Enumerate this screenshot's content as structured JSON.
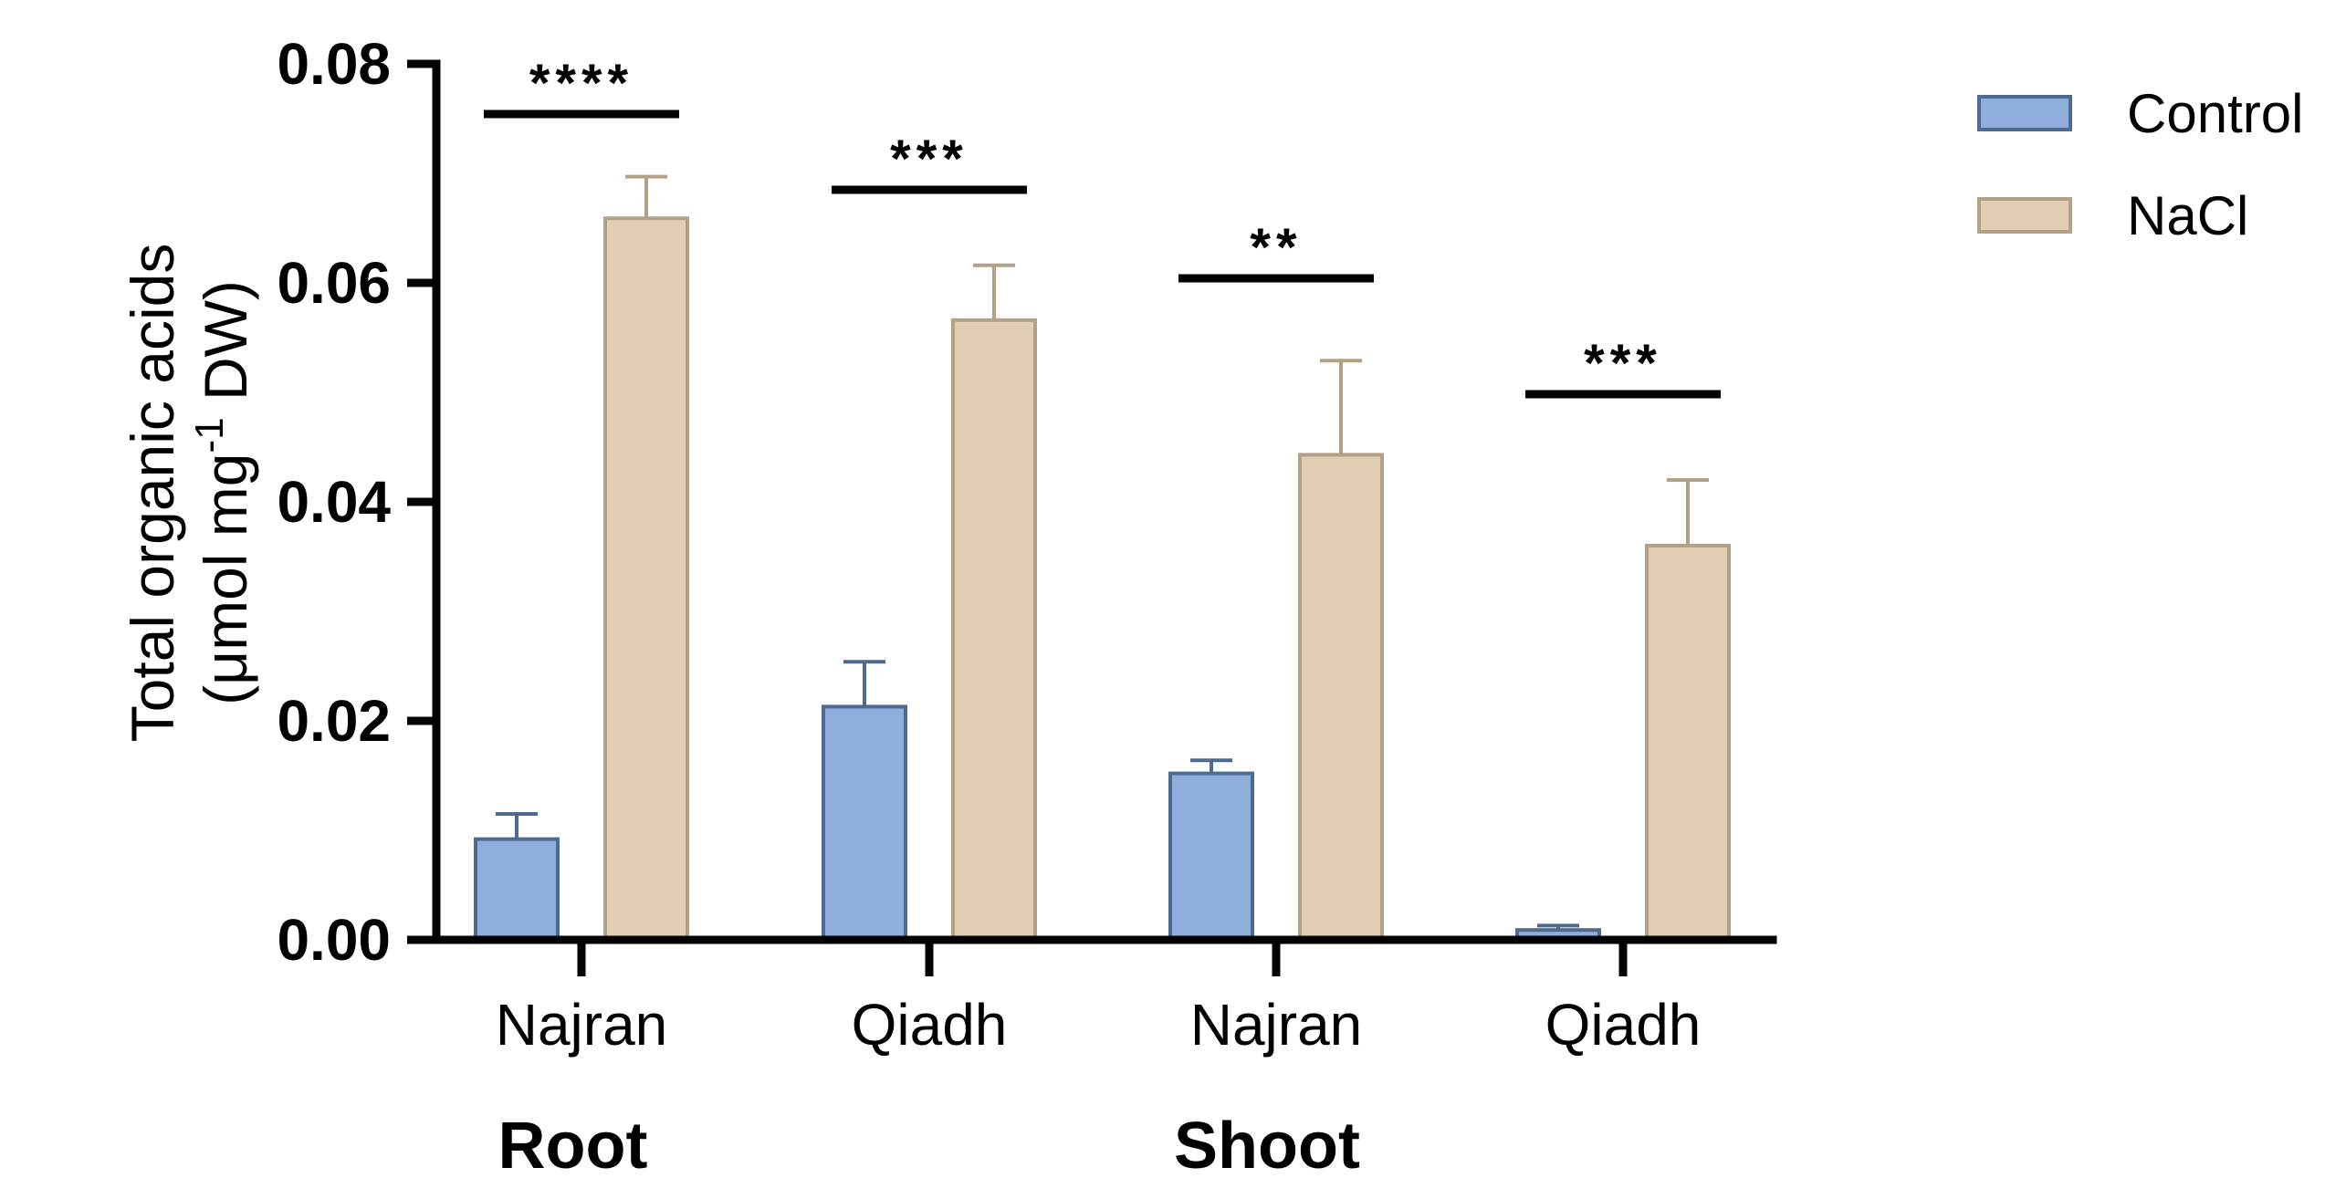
{
  "chart_data": {
    "type": "bar",
    "title": "",
    "ylabel_line1": "Total organic acids",
    "ylabel_line2_prefix": "(μmol mg",
    "ylabel_superscript": "-1",
    "ylabel_line2_suffix": " DW)",
    "ylim": [
      0,
      0.08
    ],
    "yticks": [
      0.0,
      0.02,
      0.04,
      0.06,
      0.08
    ],
    "ytick_labels": [
      "0.00",
      "0.02",
      "0.04",
      "0.06",
      "0.08"
    ],
    "categories": [
      "Najran",
      "Qiadh",
      "Najran",
      "Qiadh"
    ],
    "groups": [
      {
        "label": "Root",
        "categories": [
          0,
          1
        ]
      },
      {
        "label": "Shoot",
        "categories": [
          2,
          3
        ]
      }
    ],
    "series": [
      {
        "name": "Control",
        "color": "#8faedb",
        "edge": "#4e6a91",
        "values": [
          0.0092,
          0.0213,
          0.0152,
          0.0009
        ],
        "errors": [
          0.0023,
          0.0041,
          0.0012,
          0.0004
        ]
      },
      {
        "name": "NaCl",
        "color": "#e2cfb3",
        "edge": "#b3a187",
        "values": [
          0.0659,
          0.0566,
          0.0443,
          0.036
        ],
        "errors": [
          0.0038,
          0.005,
          0.0086,
          0.006
        ]
      }
    ],
    "significance": [
      "****",
      "***",
      "**",
      "***"
    ],
    "legend_position": "top-right"
  }
}
